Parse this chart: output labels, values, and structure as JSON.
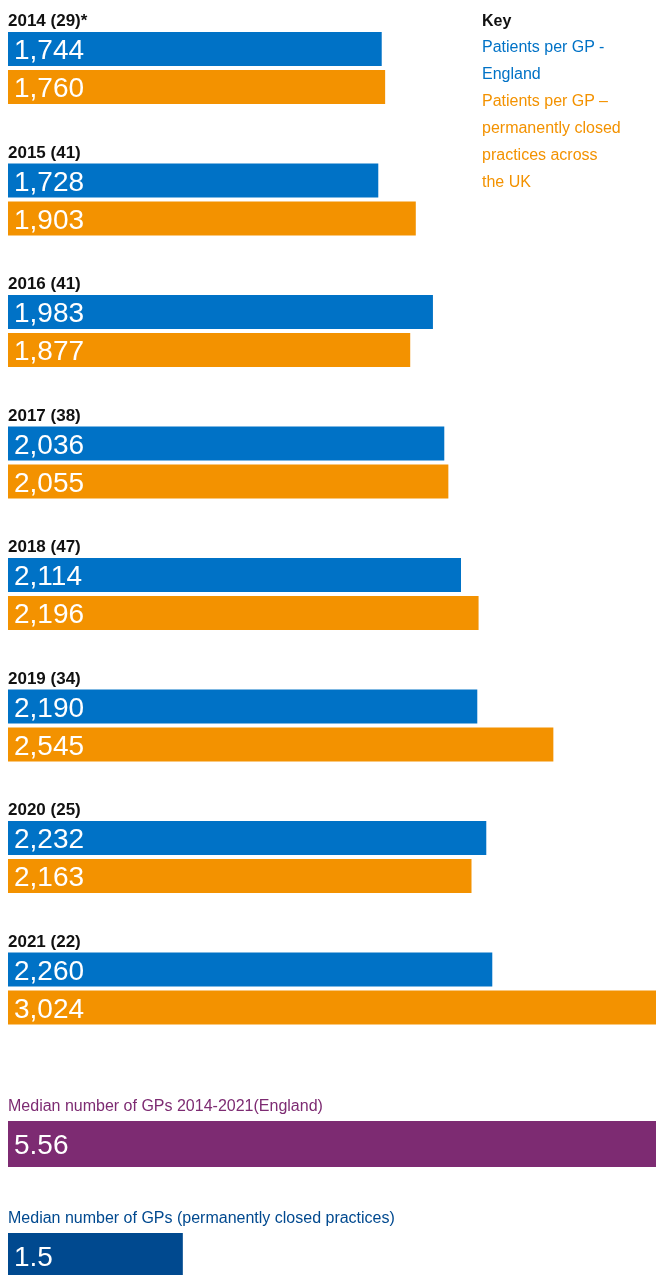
{
  "chart_data": [
    {
      "type": "bar",
      "orientation": "horizontal",
      "categories": [
        "2014 (29)*",
        "2015 (41)",
        "2016 (41)",
        "2017 (38)",
        "2018 (47)",
        "2019 (34)",
        "2020 (25)",
        "2021 (22)"
      ],
      "series": [
        {
          "name": "Patients per GP - England",
          "color": "#0072c6",
          "values": [
            1744,
            1728,
            1983,
            2036,
            2114,
            2190,
            2232,
            2260
          ],
          "value_labels": [
            "1,744",
            "1,728",
            "1,983",
            "2,036",
            "2,114",
            "2,190",
            "2,232",
            "2,260"
          ]
        },
        {
          "name": "Patients per GP – permanently closed practices across the UK",
          "color": "#f39200",
          "values": [
            1760,
            1903,
            1877,
            2055,
            2196,
            2545,
            2163,
            3024
          ],
          "value_labels": [
            "1,760",
            "1,903",
            "1,877",
            "2,055",
            "2,196",
            "2,545",
            "2,163",
            "3,024"
          ]
        }
      ],
      "legend": "top right",
      "legend_title": "Key"
    },
    {
      "type": "bar",
      "orientation": "horizontal",
      "categories": [
        "Median number of GPs 2014-2021(England)",
        "Median number of GPs (permanently closed practices)"
      ],
      "values": [
        5.56,
        1.5
      ],
      "colors": [
        "#7d2b72",
        "#00498f"
      ],
      "data_labels": true
    }
  ]
}
